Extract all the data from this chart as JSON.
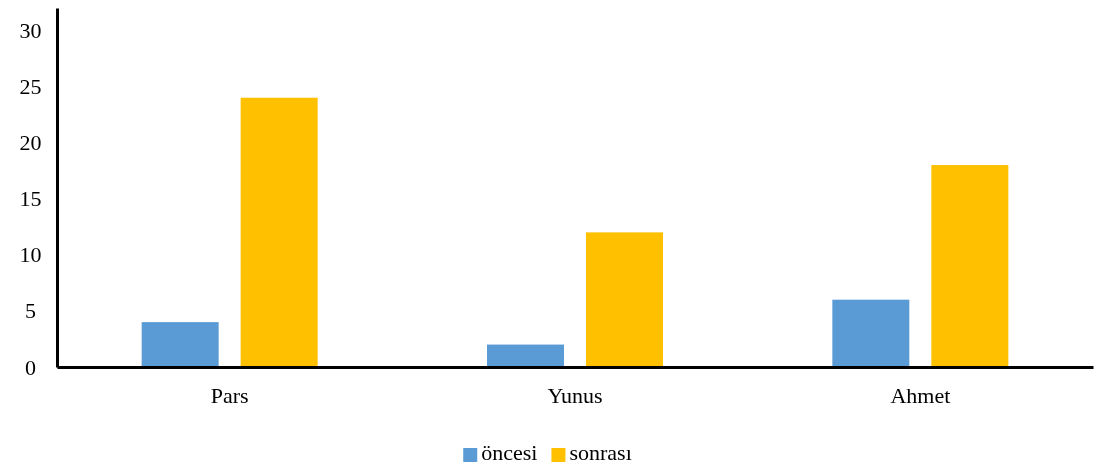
{
  "chart_data": {
    "type": "bar",
    "categories": [
      "Pars",
      "Yunus",
      "Ahmet"
    ],
    "series": [
      {
        "name": "öncesi",
        "color": "#5b9bd5",
        "values": [
          4,
          2,
          6
        ]
      },
      {
        "name": "sonrası",
        "color": "#ffc000",
        "values": [
          24,
          12,
          18
        ]
      }
    ],
    "ylim": [
      0,
      32
    ],
    "yticks": [
      0,
      5,
      10,
      15,
      20,
      25,
      30
    ],
    "grid": false,
    "legend": "bottom"
  }
}
